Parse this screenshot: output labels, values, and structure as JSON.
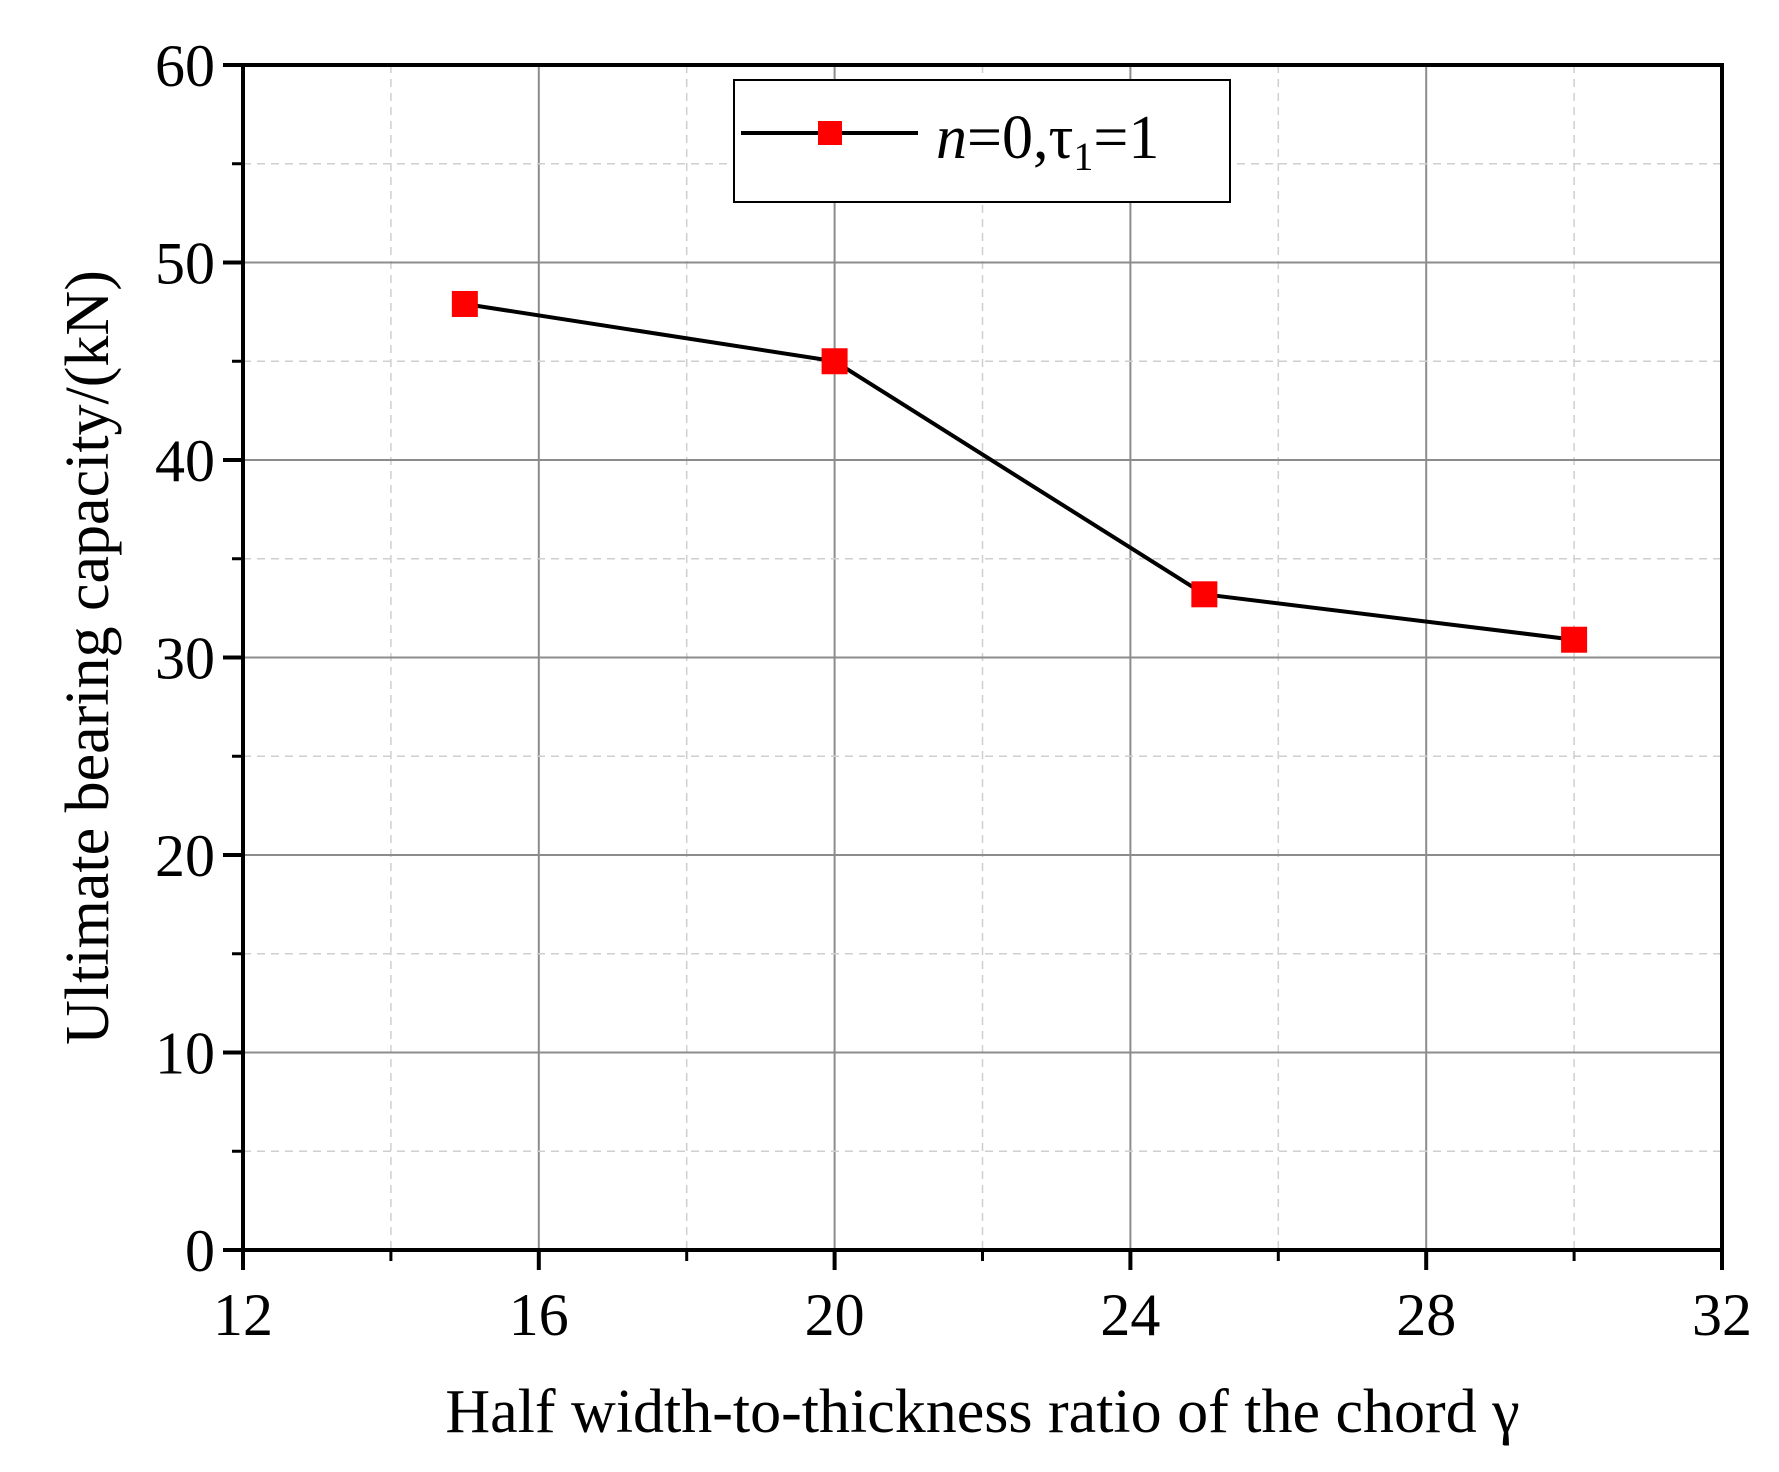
{
  "chart_data": {
    "type": "line",
    "title": "",
    "xlabel": "Half width-to-thickness ratio of the chord γ",
    "ylabel": "Ultimate bearing capacity/(kN)",
    "xlim": [
      12,
      32
    ],
    "ylim": [
      0,
      60
    ],
    "x_ticks": [
      12,
      16,
      20,
      24,
      28,
      32
    ],
    "y_ticks": [
      0,
      10,
      20,
      30,
      40,
      50,
      60
    ],
    "x_tick_labels": [
      "12",
      "16",
      "20",
      "24",
      "28",
      "32"
    ],
    "y_tick_labels": [
      "0",
      "10",
      "20",
      "30",
      "40",
      "50",
      "60"
    ],
    "grid": true,
    "legend_position": "top-right",
    "series": [
      {
        "name_parts": {
          "var": "n",
          "eq1": "=0,τ",
          "sub": "1",
          "eq2": "=1"
        },
        "color": "#000000",
        "marker": "square",
        "marker_color": "#ff0000",
        "x": [
          15,
          20,
          25,
          30
        ],
        "y": [
          47.9,
          45.0,
          33.2,
          30.9
        ]
      }
    ]
  }
}
